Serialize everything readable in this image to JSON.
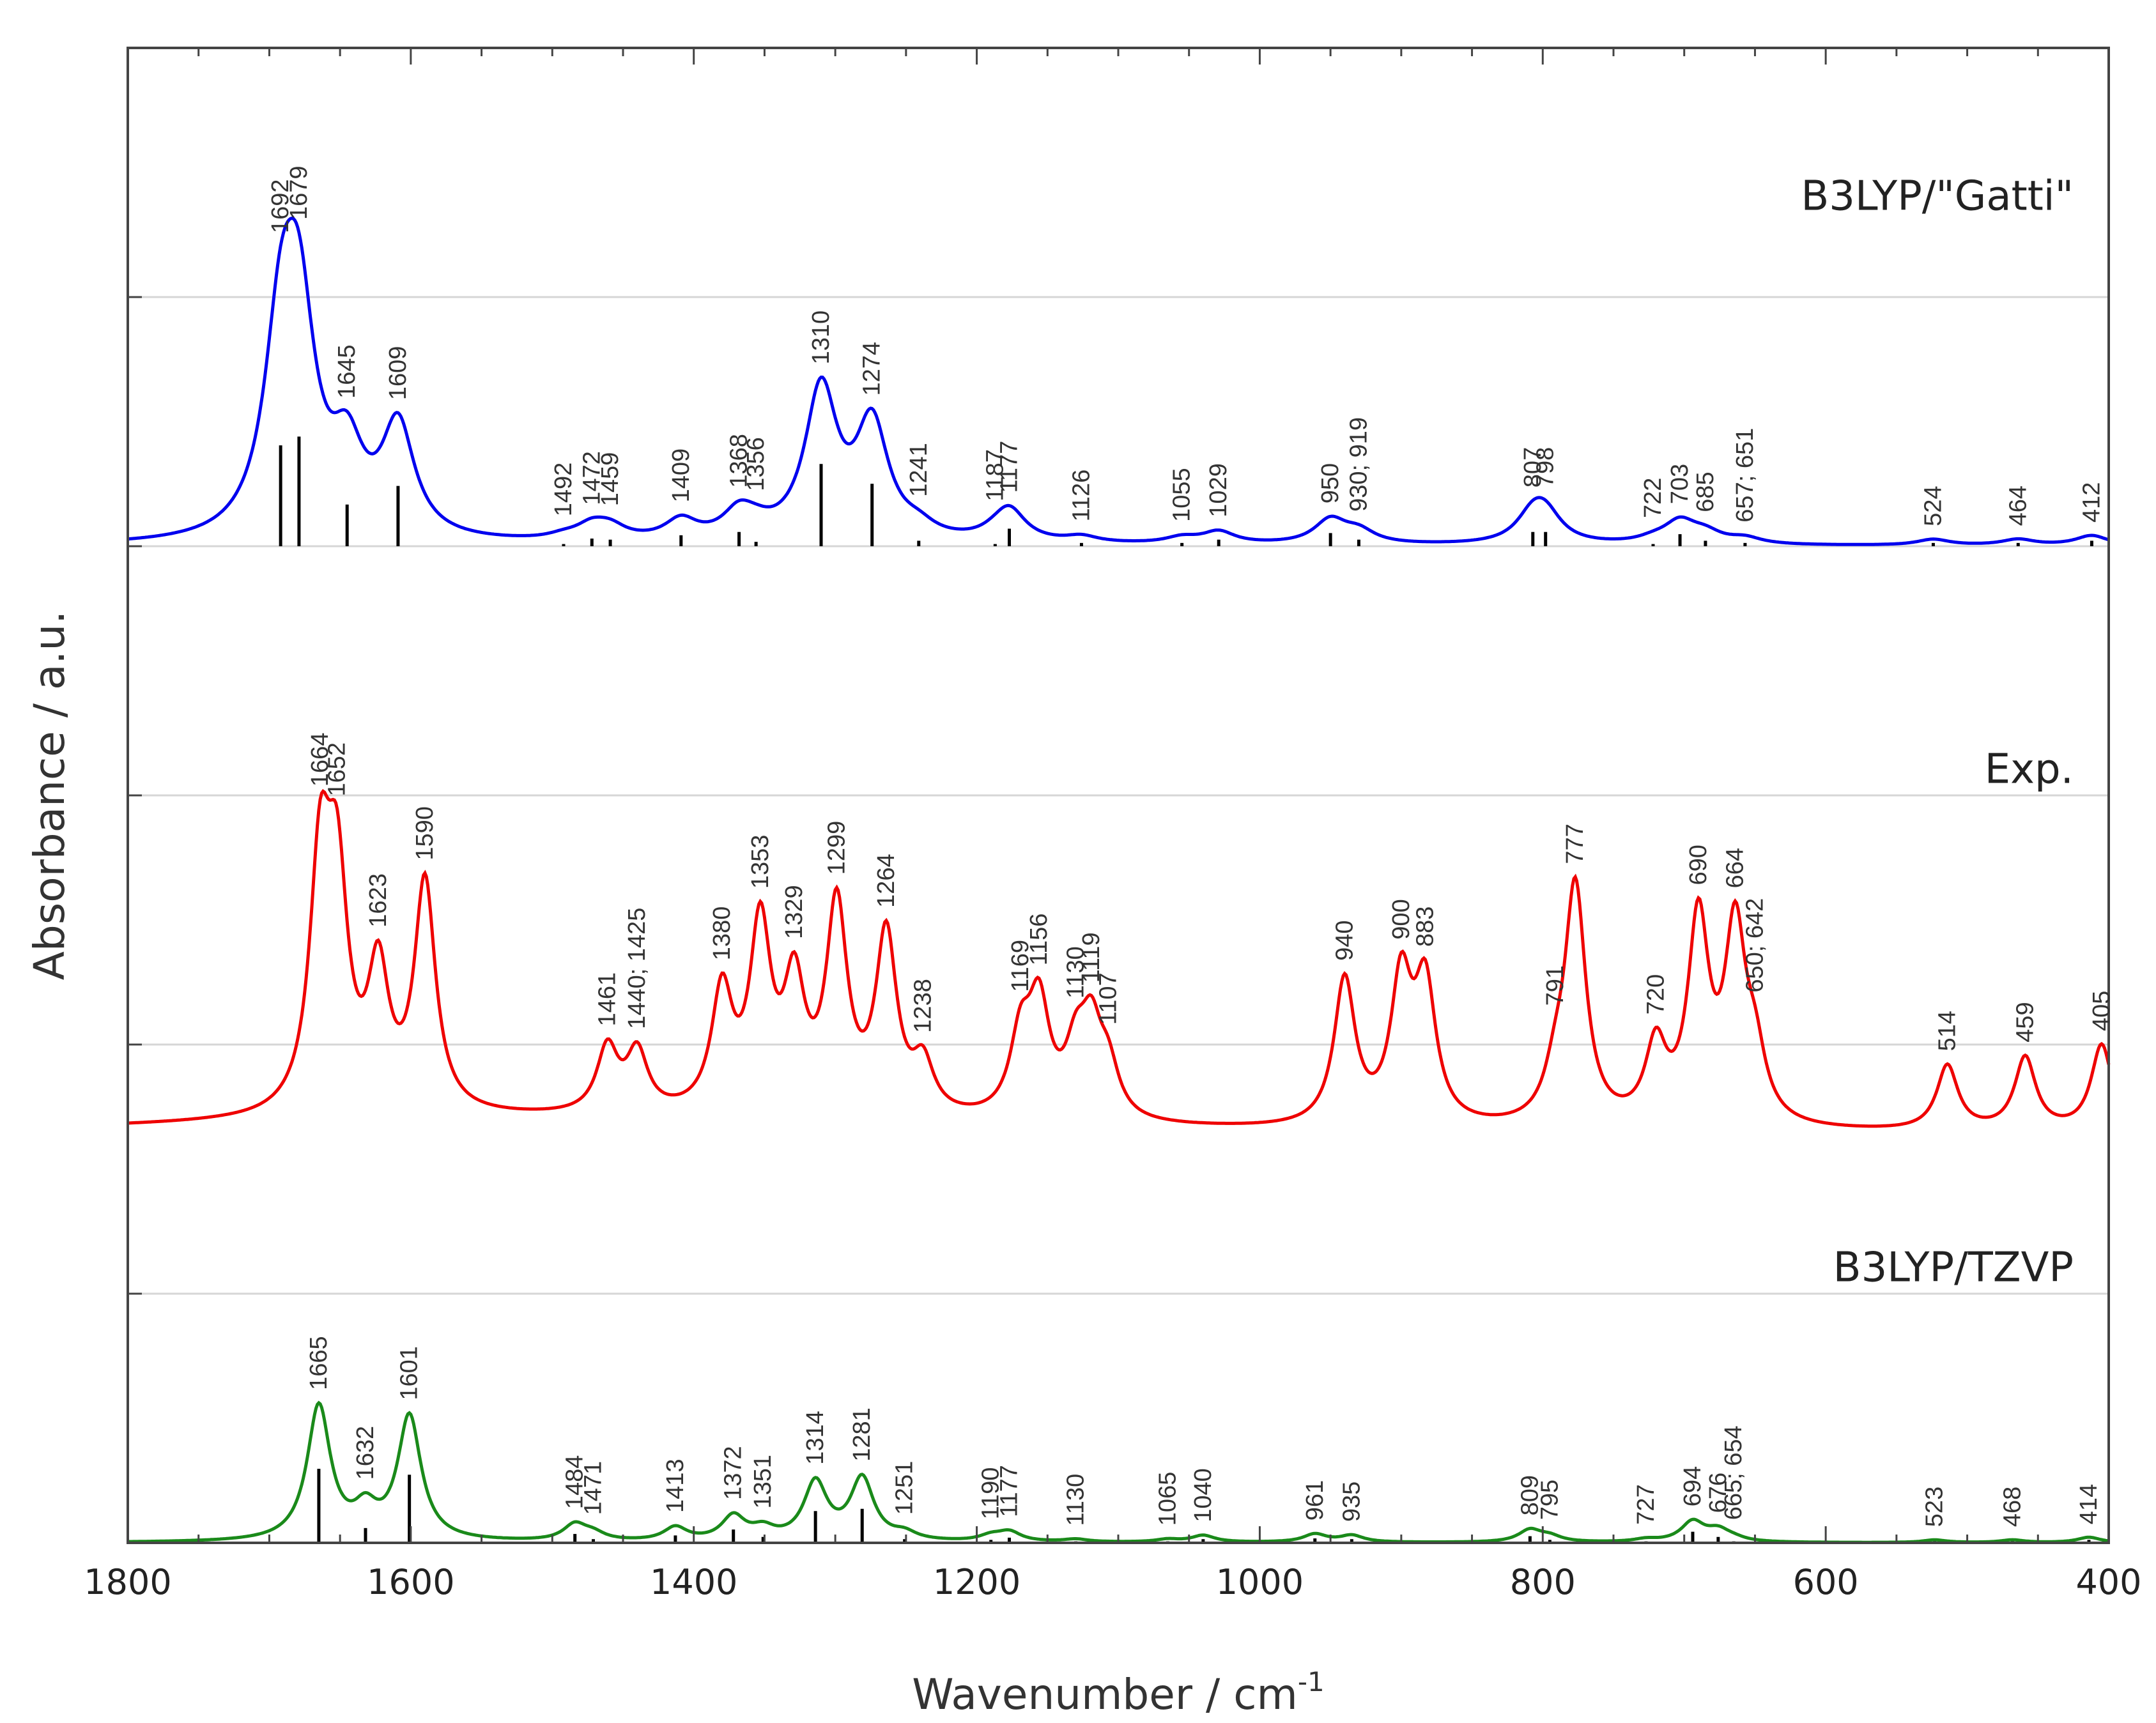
{
  "chart_data": {
    "type": "line",
    "xlabel": "Wavenumber / cm",
    "xlabel_sup": "-1",
    "ylabel": "Absorbance / a.u.",
    "xlim": [
      1800,
      400
    ],
    "x_ticks": [
      1800,
      1600,
      1400,
      1200,
      1000,
      800,
      600,
      400
    ],
    "grid": true,
    "legend": "inline-right",
    "series": [
      {
        "name": "B3LYP/\"Gatti\"",
        "color": "#0000ee",
        "offset": 4,
        "scale": 4,
        "baseline": 0.0,
        "width": 14,
        "peaks": [
          {
            "x": 1692,
            "h": 0.92,
            "label": "1692"
          },
          {
            "x": 1679,
            "h": 1.0,
            "label": "1679"
          },
          {
            "x": 1645,
            "h": 0.38,
            "label": "1645"
          },
          {
            "x": 1609,
            "h": 0.55,
            "label": "1609"
          },
          {
            "x": 1492,
            "h": 0.02,
            "label": "1492"
          },
          {
            "x": 1472,
            "h": 0.07,
            "label": "1472"
          },
          {
            "x": 1459,
            "h": 0.06,
            "label": "1459"
          },
          {
            "x": 1409,
            "h": 0.1,
            "label": "1409"
          },
          {
            "x": 1368,
            "h": 0.13,
            "label": "1368"
          },
          {
            "x": 1356,
            "h": 0.04,
            "label": "1356"
          },
          {
            "x": 1310,
            "h": 0.75,
            "label": "1310"
          },
          {
            "x": 1274,
            "h": 0.57,
            "label": "1274"
          },
          {
            "x": 1241,
            "h": 0.05,
            "label": "1241"
          },
          {
            "x": 1187,
            "h": 0.02,
            "label": "1187"
          },
          {
            "x": 1177,
            "h": 0.16,
            "label": "1177"
          },
          {
            "x": 1126,
            "h": 0.03,
            "label": "1126"
          },
          {
            "x": 1055,
            "h": 0.03,
            "label": "1055"
          },
          {
            "x": 1029,
            "h": 0.06,
            "label": "1029"
          },
          {
            "x": 950,
            "h": 0.12,
            "label": "950"
          },
          {
            "x": 930,
            "h": 0.06,
            "label": "930; 919"
          },
          {
            "x": 807,
            "h": 0.13,
            "label": "807"
          },
          {
            "x": 798,
            "h": 0.13,
            "label": "798"
          },
          {
            "x": 722,
            "h": 0.02,
            "label": "722"
          },
          {
            "x": 703,
            "h": 0.11,
            "label": "703"
          },
          {
            "x": 685,
            "h": 0.05,
            "label": "685"
          },
          {
            "x": 657,
            "h": 0.03,
            "label": "657; 651"
          },
          {
            "x": 524,
            "h": 0.03,
            "label": "524"
          },
          {
            "x": 464,
            "h": 0.03,
            "label": "464"
          },
          {
            "x": 412,
            "h": 0.05,
            "label": "412"
          }
        ]
      },
      {
        "name": "Exp.",
        "color": "#ee0000",
        "offset": 1.6,
        "scale": 5.4,
        "baseline": 0.0,
        "width": 9,
        "peaks": [
          {
            "x": 1664,
            "h": 0.88,
            "label": "1664"
          },
          {
            "x": 1652,
            "h": 0.78,
            "label": "1652"
          },
          {
            "x": 1623,
            "h": 0.5,
            "label": "1623"
          },
          {
            "x": 1590,
            "h": 0.85,
            "label": "1590"
          },
          {
            "x": 1461,
            "h": 0.24,
            "label": "1461"
          },
          {
            "x": 1440,
            "h": 0.22,
            "label": "1440; 1425"
          },
          {
            "x": 1380,
            "h": 0.44,
            "label": "1380"
          },
          {
            "x": 1353,
            "h": 0.68,
            "label": "1353"
          },
          {
            "x": 1329,
            "h": 0.45,
            "label": "1329"
          },
          {
            "x": 1299,
            "h": 0.76,
            "label": "1299"
          },
          {
            "x": 1264,
            "h": 0.66,
            "label": "1264"
          },
          {
            "x": 1238,
            "h": 0.18,
            "label": "1238"
          },
          {
            "x": 1169,
            "h": 0.28,
            "label": "1169"
          },
          {
            "x": 1156,
            "h": 0.4,
            "label": "1156"
          },
          {
            "x": 1107,
            "h": 0.17,
            "label": "1107"
          },
          {
            "x": 1130,
            "h": 0.22,
            "label": "1130"
          },
          {
            "x": 1119,
            "h": 0.3,
            "label": "1119"
          },
          {
            "x": 940,
            "h": 0.54,
            "label": "940"
          },
          {
            "x": 900,
            "h": 0.52,
            "label": "900"
          },
          {
            "x": 883,
            "h": 0.5,
            "label": "883"
          },
          {
            "x": 791,
            "h": 0.14,
            "label": "791"
          },
          {
            "x": 777,
            "h": 0.88,
            "label": "777"
          },
          {
            "x": 720,
            "h": 0.28,
            "label": "720"
          },
          {
            "x": 690,
            "h": 0.75,
            "label": "690"
          },
          {
            "x": 664,
            "h": 0.7,
            "label": "664"
          },
          {
            "x": 650,
            "h": 0.22,
            "label": "650; 642"
          },
          {
            "x": 514,
            "h": 0.24,
            "label": "514"
          },
          {
            "x": 459,
            "h": 0.27,
            "label": "459"
          },
          {
            "x": 405,
            "h": 0.32,
            "label": "405"
          }
        ]
      },
      {
        "name": "B3LYP/TZVP",
        "color": "#1a8a1a",
        "offset": 0,
        "scale": 2.7,
        "baseline": 0.0,
        "width": 10,
        "peaks": [
          {
            "x": 1665,
            "h": 1.0,
            "label": "1665"
          },
          {
            "x": 1632,
            "h": 0.2,
            "label": "1632"
          },
          {
            "x": 1601,
            "h": 0.92,
            "label": "1601"
          },
          {
            "x": 1484,
            "h": 0.12,
            "label": "1484"
          },
          {
            "x": 1471,
            "h": 0.05,
            "label": "1471"
          },
          {
            "x": 1413,
            "h": 0.1,
            "label": "1413"
          },
          {
            "x": 1372,
            "h": 0.18,
            "label": "1372"
          },
          {
            "x": 1351,
            "h": 0.08,
            "label": "1351"
          },
          {
            "x": 1314,
            "h": 0.43,
            "label": "1314"
          },
          {
            "x": 1281,
            "h": 0.46,
            "label": "1281"
          },
          {
            "x": 1251,
            "h": 0.05,
            "label": "1251"
          },
          {
            "x": 1190,
            "h": 0.04,
            "label": "1190"
          },
          {
            "x": 1177,
            "h": 0.07,
            "label": "1177"
          },
          {
            "x": 1130,
            "h": 0.02,
            "label": "1130"
          },
          {
            "x": 1065,
            "h": 0.02,
            "label": "1065"
          },
          {
            "x": 1040,
            "h": 0.05,
            "label": "1040"
          },
          {
            "x": 961,
            "h": 0.06,
            "label": "961"
          },
          {
            "x": 935,
            "h": 0.05,
            "label": "935"
          },
          {
            "x": 809,
            "h": 0.09,
            "label": "809"
          },
          {
            "x": 795,
            "h": 0.04,
            "label": "795"
          },
          {
            "x": 727,
            "h": 0.02,
            "label": "727"
          },
          {
            "x": 694,
            "h": 0.15,
            "label": "694"
          },
          {
            "x": 676,
            "h": 0.08,
            "label": "676"
          },
          {
            "x": 665,
            "h": 0.02,
            "label": "665; 654"
          },
          {
            "x": 523,
            "h": 0.02,
            "label": "523"
          },
          {
            "x": 468,
            "h": 0.02,
            "label": "468"
          },
          {
            "x": 414,
            "h": 0.04,
            "label": "414"
          }
        ]
      }
    ]
  }
}
